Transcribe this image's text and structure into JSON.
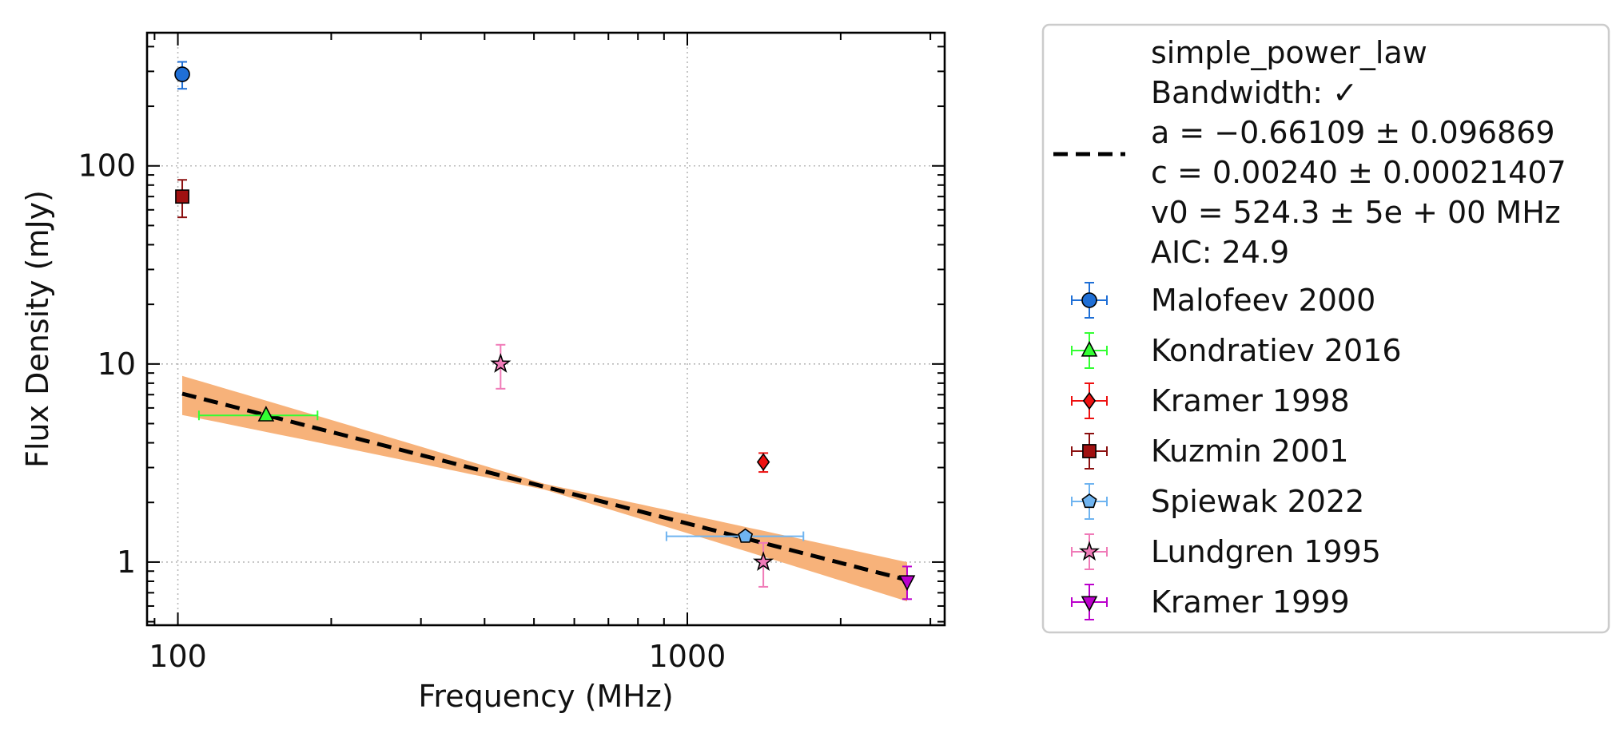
{
  "chart_data": {
    "type": "scatter",
    "x_scale": "log",
    "y_scale": "log",
    "xlabel": "Frequency (MHz)",
    "ylabel": "Flux Density (mJy)",
    "xlim": [
      87,
      3200
    ],
    "ylim": [
      0.48,
      470
    ],
    "x_ticks": [
      100,
      1000
    ],
    "x_tick_labels": [
      "100",
      "1000"
    ],
    "y_ticks": [
      1,
      10,
      100
    ],
    "y_tick_labels": [
      "1",
      "10",
      "100"
    ],
    "grid": "major, dotted",
    "legend_position": "outside right",
    "fit": {
      "model_lines": [
        "simple_power_law",
        "Bandwidth: ✓",
        "a = −0.66109 ± 0.096869",
        "c = 0.00240 ± 0.00021407",
        "v0 = 524.3 ± 5e + 00 MHz",
        "AIC: 24.9"
      ],
      "line_color": "#000000",
      "band_color": "#f7b27a",
      "x_range": [
        102,
        2700
      ],
      "a": -0.66109,
      "v0": 524.3,
      "y_at_v0": 2.4,
      "band_ratio_low": 0.78,
      "band_ratio_high": 1.23
    },
    "series": [
      {
        "name": "Malofeev 2000",
        "marker": "circle",
        "color": "#1f6fd6",
        "ecolor": "#1f6fd6",
        "points": [
          {
            "x": 102,
            "y": 290,
            "yerr": [
              45,
              45
            ]
          }
        ]
      },
      {
        "name": "Kondratiev 2016",
        "marker": "triangle-up",
        "color": "#33ff33",
        "ecolor": "#33ff33",
        "points": [
          {
            "x": 149,
            "y": 5.5,
            "xerr": [
              39,
              39
            ]
          }
        ]
      },
      {
        "name": "Kramer 1998",
        "marker": "diamond",
        "color": "#ee1111",
        "ecolor": "#ee1111",
        "points": [
          {
            "x": 1410,
            "y": 3.2,
            "yerr": [
              0.35,
              0.35
            ]
          }
        ]
      },
      {
        "name": "Kuzmin 2001",
        "marker": "square",
        "color": "#a01010",
        "ecolor": "#8b1010",
        "points": [
          {
            "x": 102,
            "y": 70,
            "yerr": [
              15,
              15
            ]
          }
        ]
      },
      {
        "name": "Spiewak 2022",
        "marker": "pentagon",
        "color": "#6fb4f0",
        "ecolor": "#6fb4f0",
        "points": [
          {
            "x": 1300,
            "y": 1.35,
            "xerr": [
              390,
              390
            ]
          }
        ]
      },
      {
        "name": "Lundgren 1995",
        "marker": "star",
        "color": "#f07bb8",
        "ecolor": "#f07bb8",
        "points": [
          {
            "x": 430,
            "y": 10,
            "yerr": [
              2.5,
              2.5
            ]
          },
          {
            "x": 1410,
            "y": 1.0,
            "yerr": [
              0.25,
              0.25
            ]
          }
        ]
      },
      {
        "name": "Kramer 1999",
        "marker": "triangle-down",
        "color": "#bb00cc",
        "ecolor": "#bb00cc",
        "points": [
          {
            "x": 2700,
            "y": 0.8,
            "yerr": [
              0.15,
              0.15
            ]
          }
        ]
      }
    ]
  }
}
